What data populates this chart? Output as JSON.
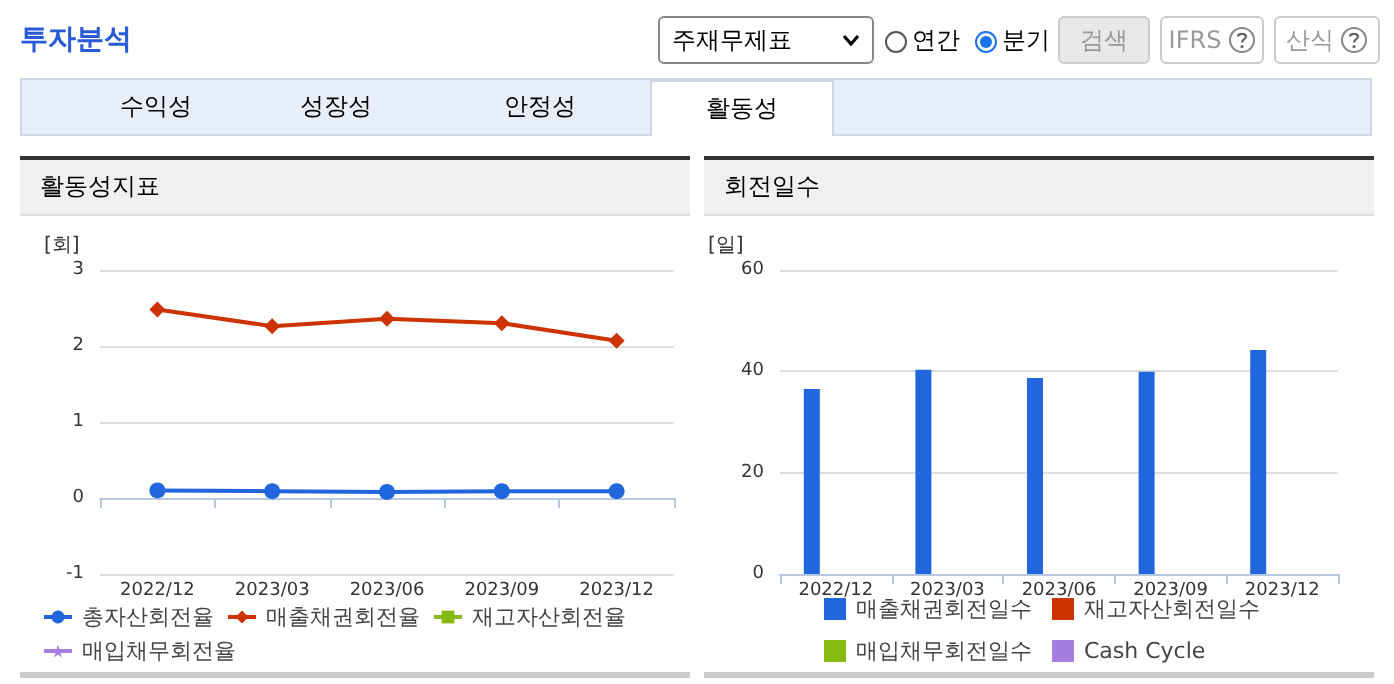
{
  "chart_data": [
    {
      "type": "other",
      "title": "투자분석",
      "annotations": [
        "주재무제표",
        "연간",
        "분기",
        "검색",
        "IFRS",
        "산식",
        "수익성",
        "성장성",
        "안정성",
        "활동성"
      ]
    },
    {
      "type": "line",
      "title": "활동성지표",
      "ylabel": "[회]",
      "categories": [
        "2022/12",
        "2023/03",
        "2023/06",
        "2023/09",
        "2023/12"
      ],
      "ylim": [
        -1,
        3
      ],
      "yticks": [
        -1,
        0,
        1,
        2,
        3
      ],
      "grid": "y",
      "legend": "bottom",
      "series": [
        {
          "name": "총자산회전율",
          "color": "#2166dd",
          "marker": "circle",
          "values": [
            0.1,
            0.09,
            0.08,
            0.09,
            0.09
          ]
        },
        {
          "name": "매출채권회전율",
          "color": "#cc3300",
          "marker": "diamond",
          "values": [
            2.48,
            2.26,
            2.36,
            2.3,
            2.07
          ]
        },
        {
          "name": "재고자산회전율",
          "color": "#88bb11",
          "marker": "square",
          "values": [
            null,
            null,
            null,
            null,
            null
          ]
        },
        {
          "name": "매입채무회전율",
          "color": "#a87de0",
          "marker": "star",
          "values": [
            null,
            null,
            null,
            null,
            null
          ]
        }
      ]
    },
    {
      "type": "bar",
      "title": "회전일수",
      "ylabel": "[일]",
      "categories": [
        "2022/12",
        "2023/03",
        "2023/06",
        "2023/09",
        "2023/12"
      ],
      "ylim": [
        0,
        60
      ],
      "yticks": [
        0,
        20,
        40,
        60
      ],
      "grid": "y",
      "legend": "bottom",
      "series": [
        {
          "name": "매출채권회전일수",
          "color": "#2166dd",
          "values": [
            36.5,
            40.3,
            38.7,
            39.9,
            44.2
          ]
        },
        {
          "name": "재고자산회전일수",
          "color": "#cc3300",
          "values": [
            null,
            null,
            null,
            null,
            null
          ]
        },
        {
          "name": "매입채무회전일수",
          "color": "#88bb11",
          "values": [
            null,
            null,
            null,
            null,
            null
          ]
        },
        {
          "name": "Cash Cycle",
          "color": "#a87de0",
          "values": [
            null,
            null,
            null,
            null,
            null
          ]
        }
      ]
    }
  ]
}
